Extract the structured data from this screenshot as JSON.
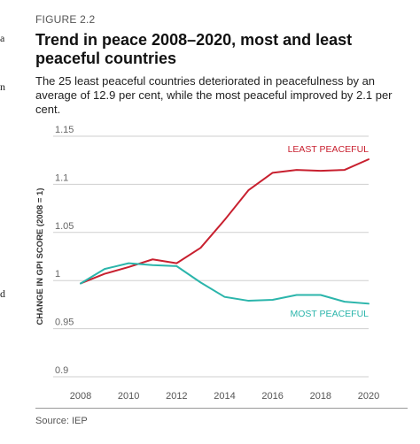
{
  "side_fragments": [
    {
      "id": "a",
      "text": "a"
    },
    {
      "id": "n",
      "text": "n"
    },
    {
      "id": "d",
      "text": "d"
    }
  ],
  "figure": {
    "label": "FIGURE 2.2",
    "title": "Trend in peace 2008–2020, most and least peaceful countries",
    "subtitle": "The 25 least peaceful countries deteriorated in peacefulness by an average of 12.9 per cent, while the most peaceful improved by 2.1 per cent.",
    "source": "Source: IEP"
  },
  "chart_data": {
    "type": "line",
    "title": "Trend in peace 2008–2020, most and least peaceful countries",
    "xlabel": "",
    "ylabel": "CHANGE IN GPI SCORE (2008 = 1)",
    "x": [
      2008,
      2009,
      2010,
      2011,
      2012,
      2013,
      2014,
      2015,
      2016,
      2017,
      2018,
      2019,
      2020
    ],
    "xticks": [
      "2008",
      "2010",
      "2012",
      "2014",
      "2016",
      "2018",
      "2020"
    ],
    "yticks": [
      "0.9",
      "0.95",
      "1",
      "1.05",
      "1.1",
      "1.15"
    ],
    "ylim": [
      0.9,
      1.15
    ],
    "xlim": [
      2008,
      2020
    ],
    "grid": "horizontal",
    "series": [
      {
        "name": "LEAST PEACEFUL",
        "color": "#c8202f",
        "values": [
          0.997,
          1.007,
          1.014,
          1.022,
          1.018,
          1.034,
          1.063,
          1.094,
          1.112,
          1.115,
          1.114,
          1.115,
          1.126
        ]
      },
      {
        "name": "MOST PEACEFUL",
        "color": "#2bb5ab",
        "values": [
          0.997,
          1.012,
          1.018,
          1.016,
          1.015,
          0.998,
          0.983,
          0.979,
          0.98,
          0.985,
          0.985,
          0.978,
          0.976
        ]
      }
    ]
  }
}
